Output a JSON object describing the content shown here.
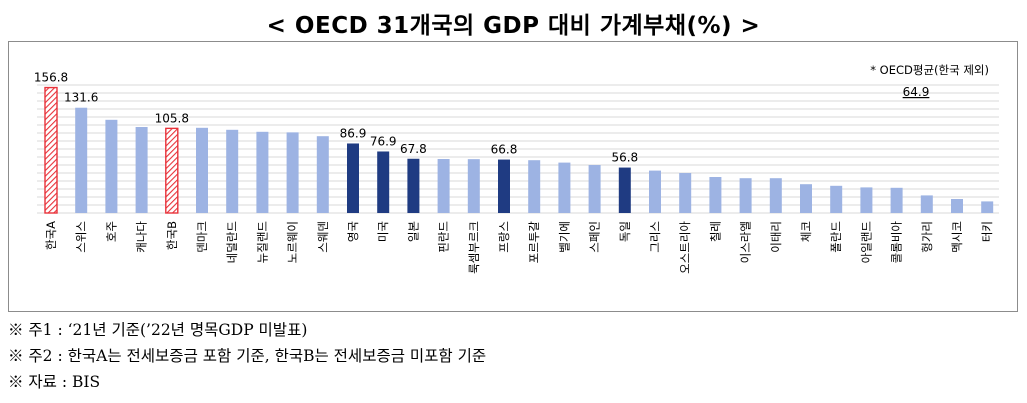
{
  "title": "< OECD 31개국의 GDP 대비 가계부채(%) >",
  "chart_data": {
    "type": "bar",
    "categories": [
      "한국A",
      "스위스",
      "호주",
      "캐나다",
      "한국B",
      "덴마크",
      "네덜란드",
      "뉴질랜드",
      "노르웨이",
      "스웨덴",
      "영국",
      "미국",
      "일본",
      "핀란드",
      "룩셈부르크",
      "프랑스",
      "포르투갈",
      "벨기에",
      "스페인",
      "독일",
      "그리스",
      "오스트리아",
      "칠레",
      "이스라엘",
      "이태리",
      "체코",
      "폴란드",
      "아일랜드",
      "콜롬비아",
      "헝가리",
      "멕시코",
      "터키"
    ],
    "values": [
      156.8,
      131.6,
      116.5,
      107.5,
      105.8,
      106.5,
      104.0,
      101.5,
      100.8,
      96.0,
      86.9,
      76.9,
      67.8,
      67.5,
      67.3,
      66.8,
      66.0,
      63.0,
      60.0,
      56.8,
      53.0,
      50.0,
      45.0,
      43.5,
      43.5,
      36.0,
      34.0,
      32.0,
      31.5,
      22.0,
      17.5,
      14.5
    ],
    "data_labels": [
      {
        "index": 0,
        "text": "156.8"
      },
      {
        "index": 1,
        "text": "131.6"
      },
      {
        "index": 4,
        "text": "105.8"
      },
      {
        "index": 10,
        "text": "86.9"
      },
      {
        "index": 11,
        "text": "76.9"
      },
      {
        "index": 12,
        "text": "67.8"
      },
      {
        "index": 15,
        "text": "66.8"
      },
      {
        "index": 19,
        "text": "56.8"
      }
    ],
    "highlight_dark": [
      10,
      11,
      12,
      15,
      19
    ],
    "highlight_hatched": [
      0,
      4
    ],
    "ylim": [
      0,
      160
    ],
    "grid": true,
    "legend_note": "* OECD평균(한국 제외)",
    "average_value": "64.9",
    "colors": {
      "default": "#9db3e3",
      "dark": "#1f3b82",
      "hatch": "#e8323a",
      "grid": "#d9d9d9"
    }
  },
  "notes": [
    "※ 주1 : ‘21년 기준(’22년 명목GDP 미발표)",
    "※ 주2 : 한국A는 전세보증금 포함 기준, 한국B는 전세보증금 미포함 기준",
    "※ 자료 : BIS"
  ]
}
